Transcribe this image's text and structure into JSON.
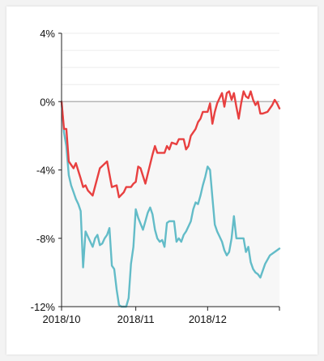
{
  "chart_data": {
    "type": "line",
    "title": "",
    "xlabel": "",
    "ylabel": "",
    "ylim": [
      -12,
      4
    ],
    "y_ticks": [
      {
        "value": 4,
        "label": "4%"
      },
      {
        "value": 0,
        "label": "0%"
      },
      {
        "value": -4,
        "label": "-4%"
      },
      {
        "value": -8,
        "label": "-8%"
      },
      {
        "value": -12,
        "label": "-12%"
      }
    ],
    "x_range": [
      "2018-10-01",
      "2018-12-31"
    ],
    "x_ticks": [
      {
        "date": "2018-10-01",
        "label": "2018/10"
      },
      {
        "date": "2018-11-01",
        "label": "2018/11"
      },
      {
        "date": "2018-12-01",
        "label": "2018/12"
      }
    ],
    "grid": true,
    "legend": "none",
    "series": [
      {
        "color": "#e84040",
        "points": [
          [
            "2018-10-01",
            0.0
          ],
          [
            "2018-10-02",
            -1.6
          ],
          [
            "2018-10-03",
            -1.6
          ],
          [
            "2018-10-04",
            -3.5
          ],
          [
            "2018-10-06",
            -3.9
          ],
          [
            "2018-10-07",
            -3.6
          ],
          [
            "2018-10-09",
            -4.5
          ],
          [
            "2018-10-10",
            -5.0
          ],
          [
            "2018-10-11",
            -4.9
          ],
          [
            "2018-10-12",
            -5.2
          ],
          [
            "2018-10-14",
            -5.5
          ],
          [
            "2018-10-17",
            -3.9
          ],
          [
            "2018-10-20",
            -3.5
          ],
          [
            "2018-10-22",
            -5.0
          ],
          [
            "2018-10-24",
            -4.9
          ],
          [
            "2018-10-25",
            -5.6
          ],
          [
            "2018-10-27",
            -5.3
          ],
          [
            "2018-10-28",
            -5.0
          ],
          [
            "2018-10-30",
            -5.0
          ],
          [
            "2018-10-31",
            -4.8
          ],
          [
            "2018-11-01",
            -4.7
          ],
          [
            "2018-11-02",
            -3.8
          ],
          [
            "2018-11-03",
            -3.9
          ],
          [
            "2018-11-05",
            -4.8
          ],
          [
            "2018-11-08",
            -3.1
          ],
          [
            "2018-11-09",
            -2.6
          ],
          [
            "2018-11-10",
            -3.0
          ],
          [
            "2018-11-12",
            -3.0
          ],
          [
            "2018-11-13",
            -3.0
          ],
          [
            "2018-11-14",
            -2.6
          ],
          [
            "2018-11-15",
            -2.8
          ],
          [
            "2018-11-16",
            -2.4
          ],
          [
            "2018-11-18",
            -2.5
          ],
          [
            "2018-11-19",
            -2.2
          ],
          [
            "2018-11-21",
            -2.2
          ],
          [
            "2018-11-22",
            -2.8
          ],
          [
            "2018-11-23",
            -2.6
          ],
          [
            "2018-11-24",
            -2.0
          ],
          [
            "2018-11-26",
            -1.6
          ],
          [
            "2018-11-27",
            -1.2
          ],
          [
            "2018-11-28",
            -1.0
          ],
          [
            "2018-11-29",
            -0.6
          ],
          [
            "2018-12-01",
            -0.6
          ],
          [
            "2018-12-02",
            -0.1
          ],
          [
            "2018-12-03",
            -1.3
          ],
          [
            "2018-12-04",
            -0.6
          ],
          [
            "2018-12-05",
            -0.1
          ],
          [
            "2018-12-06",
            0.2
          ],
          [
            "2018-12-07",
            0.5
          ],
          [
            "2018-12-08",
            -0.3
          ],
          [
            "2018-12-09",
            0.5
          ],
          [
            "2018-12-10",
            0.6
          ],
          [
            "2018-12-11",
            0.1
          ],
          [
            "2018-12-12",
            0.5
          ],
          [
            "2018-12-13",
            -0.3
          ],
          [
            "2018-12-14",
            -1.0
          ],
          [
            "2018-12-15",
            -0.1
          ],
          [
            "2018-12-16",
            0.6
          ],
          [
            "2018-12-17",
            0.3
          ],
          [
            "2018-12-18",
            0.2
          ],
          [
            "2018-12-19",
            0.6
          ],
          [
            "2018-12-20",
            0.1
          ],
          [
            "2018-12-21",
            -0.2
          ],
          [
            "2018-12-22",
            0.0
          ],
          [
            "2018-12-23",
            -0.7
          ],
          [
            "2018-12-24",
            -0.7
          ],
          [
            "2018-12-26",
            -0.6
          ],
          [
            "2018-12-28",
            -0.2
          ],
          [
            "2018-12-29",
            0.1
          ],
          [
            "2018-12-30",
            -0.1
          ],
          [
            "2018-12-31",
            -0.4
          ]
        ]
      },
      {
        "color": "#63bcc8",
        "points": [
          [
            "2018-10-01",
            0.0
          ],
          [
            "2018-10-02",
            -1.8
          ],
          [
            "2018-10-03",
            -2.6
          ],
          [
            "2018-10-04",
            -4.3
          ],
          [
            "2018-10-05",
            -4.9
          ],
          [
            "2018-10-06",
            -5.3
          ],
          [
            "2018-10-07",
            -5.7
          ],
          [
            "2018-10-08",
            -6.0
          ],
          [
            "2018-10-09",
            -6.4
          ],
          [
            "2018-10-10",
            -9.7
          ],
          [
            "2018-10-11",
            -7.6
          ],
          [
            "2018-10-12",
            -7.9
          ],
          [
            "2018-10-13",
            -8.2
          ],
          [
            "2018-10-14",
            -8.5
          ],
          [
            "2018-10-15",
            -8.0
          ],
          [
            "2018-10-16",
            -7.8
          ],
          [
            "2018-10-17",
            -8.4
          ],
          [
            "2018-10-18",
            -8.3
          ],
          [
            "2018-10-19",
            -8.0
          ],
          [
            "2018-10-20",
            -7.8
          ],
          [
            "2018-10-21",
            -7.4
          ],
          [
            "2018-10-22",
            -9.6
          ],
          [
            "2018-10-23",
            -9.8
          ],
          [
            "2018-10-24",
            -11.0
          ],
          [
            "2018-10-25",
            -11.9
          ],
          [
            "2018-10-26",
            -12.0
          ],
          [
            "2018-10-28",
            -12.0
          ],
          [
            "2018-10-29",
            -11.5
          ],
          [
            "2018-10-30",
            -9.5
          ],
          [
            "2018-10-31",
            -8.5
          ],
          [
            "2018-11-01",
            -6.3
          ],
          [
            "2018-11-02",
            -6.8
          ],
          [
            "2018-11-04",
            -7.5
          ],
          [
            "2018-11-05",
            -7.0
          ],
          [
            "2018-11-06",
            -6.5
          ],
          [
            "2018-11-07",
            -6.2
          ],
          [
            "2018-11-08",
            -6.6
          ],
          [
            "2018-11-09",
            -7.5
          ],
          [
            "2018-11-10",
            -8.0
          ],
          [
            "2018-11-11",
            -8.2
          ],
          [
            "2018-11-12",
            -8.1
          ],
          [
            "2018-11-13",
            -8.5
          ],
          [
            "2018-11-14",
            -7.1
          ],
          [
            "2018-11-15",
            -7.0
          ],
          [
            "2018-11-17",
            -7.0
          ],
          [
            "2018-11-18",
            -8.2
          ],
          [
            "2018-11-19",
            -8.0
          ],
          [
            "2018-11-20",
            -8.2
          ],
          [
            "2018-11-21",
            -7.8
          ],
          [
            "2018-11-22",
            -7.6
          ],
          [
            "2018-11-23",
            -7.3
          ],
          [
            "2018-11-24",
            -7.0
          ],
          [
            "2018-11-25",
            -6.3
          ],
          [
            "2018-11-26",
            -5.9
          ],
          [
            "2018-11-27",
            -6.0
          ],
          [
            "2018-11-28",
            -5.5
          ],
          [
            "2018-11-29",
            -4.9
          ],
          [
            "2018-11-30",
            -4.4
          ],
          [
            "2018-12-01",
            -3.8
          ],
          [
            "2018-12-02",
            -4.0
          ],
          [
            "2018-12-03",
            -5.6
          ],
          [
            "2018-12-04",
            -7.2
          ],
          [
            "2018-12-05",
            -7.6
          ],
          [
            "2018-12-06",
            -7.9
          ],
          [
            "2018-12-07",
            -8.2
          ],
          [
            "2018-12-08",
            -8.7
          ],
          [
            "2018-12-09",
            -9.0
          ],
          [
            "2018-12-10",
            -8.8
          ],
          [
            "2018-12-11",
            -8.0
          ],
          [
            "2018-12-12",
            -6.7
          ],
          [
            "2018-12-13",
            -8.0
          ],
          [
            "2018-12-14",
            -8.0
          ],
          [
            "2018-12-15",
            -8.0
          ],
          [
            "2018-12-16",
            -8.0
          ],
          [
            "2018-12-17",
            -8.8
          ],
          [
            "2018-12-18",
            -8.5
          ],
          [
            "2018-12-19",
            -9.4
          ],
          [
            "2018-12-20",
            -9.8
          ],
          [
            "2018-12-21",
            -10.0
          ],
          [
            "2018-12-22",
            -10.1
          ],
          [
            "2018-12-23",
            -10.3
          ],
          [
            "2018-12-25",
            -9.5
          ],
          [
            "2018-12-27",
            -9.0
          ],
          [
            "2018-12-29",
            -8.8
          ],
          [
            "2018-12-31",
            -8.6
          ]
        ]
      }
    ]
  }
}
